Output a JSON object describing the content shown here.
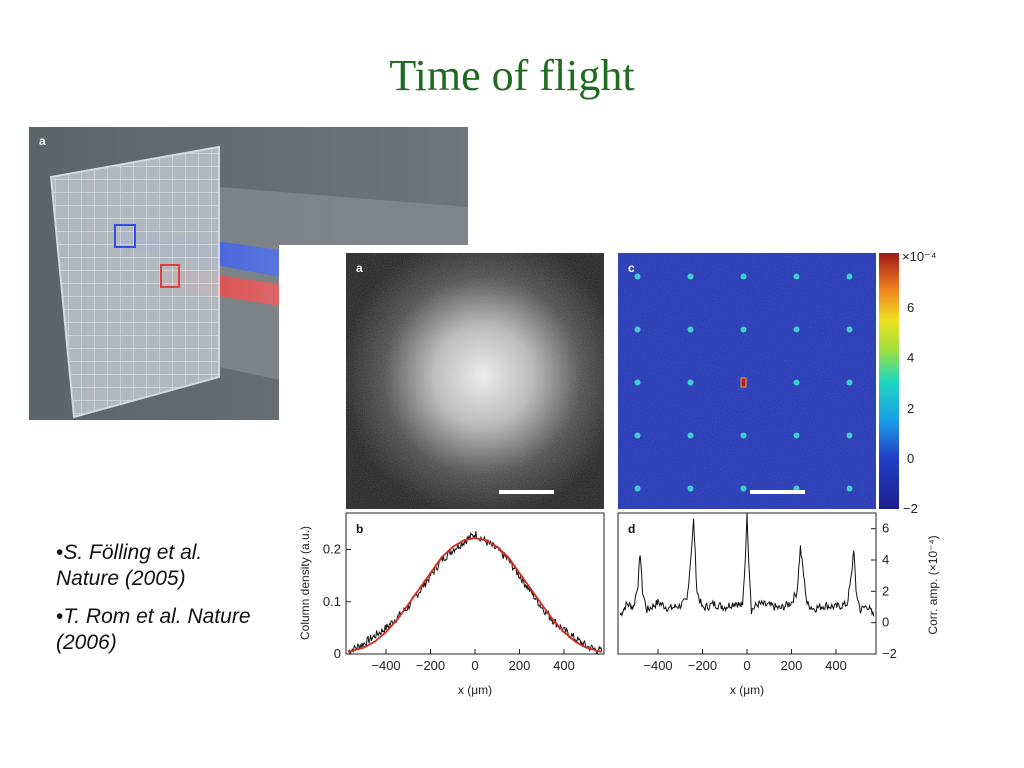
{
  "slide": {
    "title": "Time of flight"
  },
  "panel_3d": {
    "label": "a"
  },
  "figure": {
    "panel_a_label": "a",
    "panel_b_label": "b",
    "panel_c_label": "c",
    "panel_d_label": "d",
    "colorbar": {
      "exponent_label": "×10⁻⁴",
      "ticks": [
        "6",
        "4",
        "2",
        "0",
        "−2"
      ]
    }
  },
  "references": [
    {
      "bullet": "•",
      "text": "S. Fölling et al. Nature (2005)"
    },
    {
      "bullet": "•",
      "text": "T. Rom et al. Nature (2006)"
    }
  ],
  "chart_data": [
    {
      "type": "line",
      "panel": "b",
      "xlabel": "x (μm)",
      "ylabel": "Column density (a.u.)",
      "xlim": [
        -580,
        580
      ],
      "ylim": [
        0,
        0.27
      ],
      "xticks": [
        "−400",
        "−200",
        "0",
        "200",
        "400"
      ],
      "xtick_values": [
        -400,
        -200,
        0,
        200,
        400
      ],
      "yticks": [
        "0",
        "0.1",
        "0.2"
      ],
      "ytick_values": [
        0,
        0.1,
        0.2
      ],
      "series": [
        {
          "style": "noisy",
          "color": "#111111",
          "x": [
            -570,
            -500,
            -450,
            -400,
            -350,
            -300,
            -250,
            -200,
            -150,
            -100,
            -50,
            0,
            50,
            100,
            150,
            200,
            250,
            300,
            350,
            400,
            450,
            500,
            570
          ],
          "y": [
            0.005,
            0.02,
            0.035,
            0.05,
            0.07,
            0.09,
            0.12,
            0.15,
            0.18,
            0.2,
            0.215,
            0.23,
            0.215,
            0.2,
            0.18,
            0.15,
            0.12,
            0.09,
            0.065,
            0.045,
            0.03,
            0.015,
            0.005
          ]
        },
        {
          "style": "fit",
          "color": "#d62a1e",
          "x": [
            -570,
            -500,
            -450,
            -400,
            -350,
            -300,
            -250,
            -200,
            -150,
            -100,
            -50,
            0,
            50,
            100,
            150,
            200,
            250,
            300,
            350,
            400,
            450,
            500,
            570
          ],
          "y": [
            0.004,
            0.012,
            0.024,
            0.042,
            0.066,
            0.095,
            0.125,
            0.155,
            0.185,
            0.205,
            0.218,
            0.222,
            0.218,
            0.205,
            0.185,
            0.155,
            0.125,
            0.095,
            0.066,
            0.042,
            0.024,
            0.012,
            0.004
          ]
        }
      ]
    },
    {
      "type": "line",
      "panel": "d",
      "xlabel": "x (μm)",
      "ylabel": "Corr. amp. (×10⁻⁴)",
      "xlim": [
        -580,
        580
      ],
      "ylim": [
        -2,
        7
      ],
      "xticks": [
        "−400",
        "−200",
        "0",
        "200",
        "400"
      ],
      "xtick_values": [
        -400,
        -200,
        0,
        200,
        400
      ],
      "yticks": [
        "6",
        "4",
        "2",
        "0",
        "−2"
      ],
      "ytick_values": [
        6,
        4,
        2,
        0,
        -2
      ],
      "series": [
        {
          "style": "noisy",
          "color": "#111111",
          "x": [
            -570,
            -540,
            -510,
            -490,
            -480,
            -470,
            -450,
            -400,
            -350,
            -300,
            -270,
            -255,
            -240,
            -225,
            -200,
            -150,
            -100,
            -50,
            -20,
            -8,
            0,
            8,
            20,
            50,
            100,
            150,
            200,
            225,
            240,
            255,
            270,
            300,
            350,
            400,
            450,
            470,
            480,
            490,
            510,
            540,
            570
          ],
          "y": [
            0.5,
            1.2,
            1.0,
            2.5,
            4.5,
            2.0,
            0.8,
            1.3,
            0.9,
            1.1,
            1.4,
            3.8,
            6.5,
            2.0,
            0.9,
            1.2,
            1.0,
            1.3,
            1.0,
            4.0,
            7.0,
            4.0,
            0.8,
            1.2,
            1.1,
            0.9,
            1.3,
            2.0,
            4.8,
            3.0,
            1.2,
            0.9,
            1.1,
            1.0,
            1.2,
            3.0,
            4.8,
            2.0,
            0.8,
            1.1,
            0.4
          ]
        }
      ]
    }
  ]
}
